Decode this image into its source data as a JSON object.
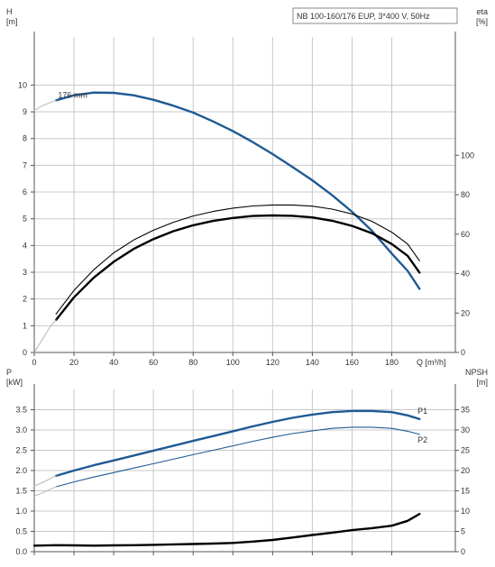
{
  "title": "NB 100-160/176 EUP, 3*400 V, 50Hz",
  "chart_data": [
    {
      "type": "line",
      "panel": "upper",
      "left_axis": {
        "label_line1": "H",
        "label_line2": "[m]",
        "ticks": [
          0,
          1,
          2,
          3,
          4,
          5,
          6,
          7,
          8,
          9,
          10
        ],
        "range": [
          0,
          11.8
        ]
      },
      "right_axis": {
        "label_line1": "eta",
        "label_line2": "[%]",
        "ticks": [
          0,
          20,
          40,
          60,
          80,
          100
        ],
        "range": [
          0,
          160
        ]
      },
      "x_axis": {
        "label": "Q [m³/h]",
        "ticks": [
          0,
          20,
          40,
          60,
          80,
          100,
          120,
          140,
          160,
          180
        ],
        "range": [
          0,
          212
        ]
      },
      "grid": true,
      "series": [
        {
          "name": "176 mm",
          "role": "head",
          "axis": "left",
          "color": "#1f5a94",
          "x": [
            11,
            20,
            30,
            40,
            50,
            60,
            70,
            80,
            90,
            100,
            110,
            120,
            130,
            140,
            150,
            160,
            170,
            180,
            188,
            194
          ],
          "y": [
            9.43,
            9.62,
            9.72,
            9.71,
            9.62,
            9.45,
            9.23,
            8.97,
            8.64,
            8.28,
            7.87,
            7.42,
            6.94,
            6.44,
            5.88,
            5.26,
            4.55,
            3.7,
            3.05,
            2.38
          ]
        },
        {
          "role": "head-extension",
          "axis": "left",
          "color": "#b8b8b8",
          "x": [
            0,
            4,
            8,
            11
          ],
          "y": [
            9.05,
            9.22,
            9.35,
            9.43
          ]
        },
        {
          "role": "efficiency",
          "axis": "right",
          "color": "#000000",
          "x": [
            11,
            20,
            30,
            40,
            50,
            60,
            70,
            80,
            90,
            100,
            110,
            120,
            130,
            140,
            150,
            160,
            170,
            180,
            188,
            194
          ],
          "y": [
            16.5,
            28,
            38,
            46,
            52.5,
            57.5,
            61.5,
            64.5,
            66.7,
            68.2,
            69.2,
            69.5,
            69.3,
            68.5,
            66.8,
            64.2,
            60.5,
            55,
            49,
            40.5
          ]
        },
        {
          "role": "efficiency-thin",
          "axis": "right",
          "color": "#000000",
          "x": [
            11,
            20,
            30,
            40,
            50,
            60,
            70,
            80,
            90,
            100,
            110,
            120,
            130,
            140,
            150,
            160,
            170,
            180,
            188,
            194
          ],
          "y": [
            19.5,
            31.5,
            42,
            50.5,
            57,
            62,
            66,
            69.2,
            71.5,
            73.2,
            74.3,
            74.8,
            74.8,
            74.2,
            72.7,
            70.2,
            66.5,
            61,
            55,
            46.5
          ]
        },
        {
          "role": "efficiency-extension",
          "axis": "right",
          "color": "#b8b8b8",
          "x": [
            0,
            4,
            8,
            11
          ],
          "y": [
            0,
            6.5,
            13,
            16.5
          ]
        }
      ],
      "annotations": [
        {
          "text": "176 mm"
        }
      ]
    },
    {
      "type": "line",
      "panel": "lower",
      "left_axis": {
        "label_line1": "P",
        "label_line2": "[kW]",
        "ticks": [
          "0.0",
          "0.5",
          "1.0",
          "1.5",
          "2.0",
          "2.5",
          "3.0",
          "3.5"
        ],
        "range": [
          0,
          4.0
        ]
      },
      "right_axis": {
        "label_line1": "NPSH",
        "label_line2": "[m]",
        "ticks": [
          0,
          5,
          10,
          15,
          20,
          25,
          30,
          35
        ],
        "range": [
          0,
          40
        ]
      },
      "x_axis": {
        "range": [
          0,
          212
        ]
      },
      "grid": true,
      "series": [
        {
          "name": "P1",
          "axis": "left",
          "color": "#1f5a94",
          "x": [
            11,
            20,
            30,
            40,
            50,
            60,
            70,
            80,
            90,
            100,
            110,
            120,
            130,
            140,
            150,
            160,
            170,
            180,
            188,
            194
          ],
          "y": [
            1.87,
            2.0,
            2.13,
            2.25,
            2.37,
            2.49,
            2.61,
            2.73,
            2.85,
            2.97,
            3.09,
            3.2,
            3.3,
            3.38,
            3.44,
            3.47,
            3.47,
            3.44,
            3.36,
            3.27
          ]
        },
        {
          "name": "P2",
          "axis": "left",
          "color": "#1f5a94",
          "x": [
            11,
            20,
            30,
            40,
            50,
            60,
            70,
            80,
            90,
            100,
            110,
            120,
            130,
            140,
            150,
            160,
            170,
            180,
            188,
            194
          ],
          "y": [
            1.6,
            1.72,
            1.84,
            1.95,
            2.06,
            2.17,
            2.28,
            2.39,
            2.5,
            2.61,
            2.72,
            2.82,
            2.91,
            2.98,
            3.04,
            3.07,
            3.07,
            3.04,
            2.97,
            2.89
          ]
        },
        {
          "role": "P1-extension",
          "axis": "left",
          "color": "#b8b8b8",
          "x": [
            0,
            4,
            8,
            11
          ],
          "y": [
            1.62,
            1.7,
            1.8,
            1.87
          ]
        },
        {
          "role": "P2-extension",
          "axis": "left",
          "color": "#b8b8b8",
          "x": [
            0,
            4,
            8,
            11
          ],
          "y": [
            1.37,
            1.45,
            1.54,
            1.6
          ]
        },
        {
          "role": "npsh",
          "axis": "right",
          "color": "#000000",
          "x": [
            0,
            11,
            20,
            30,
            40,
            50,
            60,
            70,
            80,
            90,
            100,
            110,
            120,
            130,
            140,
            150,
            160,
            170,
            180,
            188,
            194
          ],
          "y": [
            1.5,
            1.6,
            1.55,
            1.5,
            1.55,
            1.6,
            1.7,
            1.8,
            1.9,
            2.0,
            2.15,
            2.5,
            2.9,
            3.5,
            4.1,
            4.7,
            5.3,
            5.8,
            6.4,
            7.6,
            9.3
          ]
        }
      ],
      "annotations": [
        {
          "text": "P1"
        },
        {
          "text": "P2"
        }
      ]
    }
  ]
}
